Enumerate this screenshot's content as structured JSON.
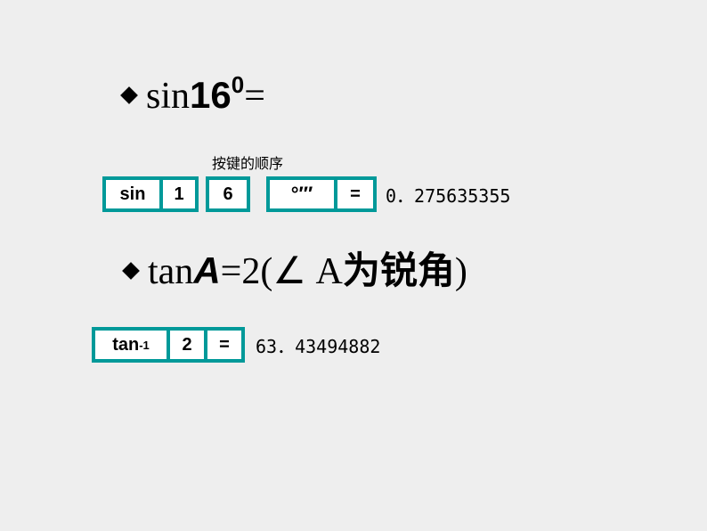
{
  "background_color": "#eeeeee",
  "key_border_color": "#009999",
  "key_bg_color": "#ffffff",
  "line1": {
    "sin": "sin",
    "num": "16",
    "sup": "0",
    "eq": "="
  },
  "sublabel": "按键的顺序",
  "keys1": {
    "sin": "sin",
    "d1": "1",
    "d6": "6",
    "dms": "°′″",
    "eq": "="
  },
  "result1": "0．275635355",
  "line2": {
    "tan": "tan",
    "A": "A",
    "eq": "=",
    "two": "2",
    "open": "(",
    "angle": "∠",
    "space": " ",
    "Aletter": "A",
    "text": "为锐角",
    "close": ")"
  },
  "keys2": {
    "taninv_base": "tan",
    "taninv_sup": "-1",
    "d2": "2",
    "eq": "="
  },
  "result2": "63．43494882"
}
